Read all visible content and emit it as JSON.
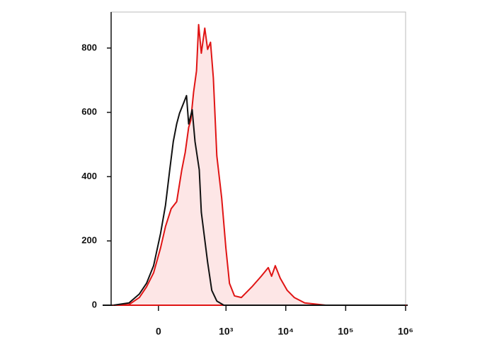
{
  "chart_data": {
    "type": "histogram-overlay",
    "xscale": "biexponential",
    "xlim": [
      -450,
      1000000
    ],
    "xticks": [
      0,
      {
        "value": 1000,
        "label": "10³"
      },
      {
        "value": 10000,
        "label": "10⁴"
      },
      {
        "value": 100000,
        "label": "10⁵"
      },
      {
        "value": 1000000,
        "label": "10⁶"
      }
    ],
    "ylim": [
      0,
      912
    ],
    "yticks": [
      0,
      200,
      400,
      600,
      800
    ],
    "series": [
      {
        "color": "#e01414",
        "fill": "#fde6e6",
        "x": [
          -410,
          -208,
          -120,
          -71,
          -28,
          12,
          41,
          76,
          114,
          153,
          183,
          216,
          238,
          270,
          306,
          335,
          375,
          432,
          485,
          544,
          609,
          698,
          846,
          995,
          1146,
          1388,
          1815,
          2715,
          3885,
          5100,
          5805,
          6690,
          8085,
          10590,
          13860,
          20700,
          46500,
          1000000
        ],
        "values": [
          0,
          2,
          24,
          57,
          101,
          178,
          245,
          300,
          322,
          421,
          476,
          553,
          575,
          663,
          729,
          873,
          784,
          862,
          796,
          818,
          707,
          465,
          333,
          178,
          68,
          29,
          24,
          57,
          90,
          117,
          90,
          123,
          84,
          46,
          24,
          7,
          0,
          0
        ]
      },
      {
        "color": "#111111",
        "x": [
          -410,
          -208,
          -120,
          -71,
          -28,
          12,
          41,
          67,
          90,
          114,
          135,
          170,
          195,
          216,
          254,
          287,
          344,
          375,
          485,
          573,
          698,
          918,
          1000000
        ],
        "values": [
          0,
          7,
          35,
          68,
          123,
          223,
          311,
          421,
          509,
          564,
          597,
          630,
          652,
          564,
          608,
          509,
          421,
          289,
          134,
          46,
          13,
          0,
          0
        ]
      }
    ]
  }
}
